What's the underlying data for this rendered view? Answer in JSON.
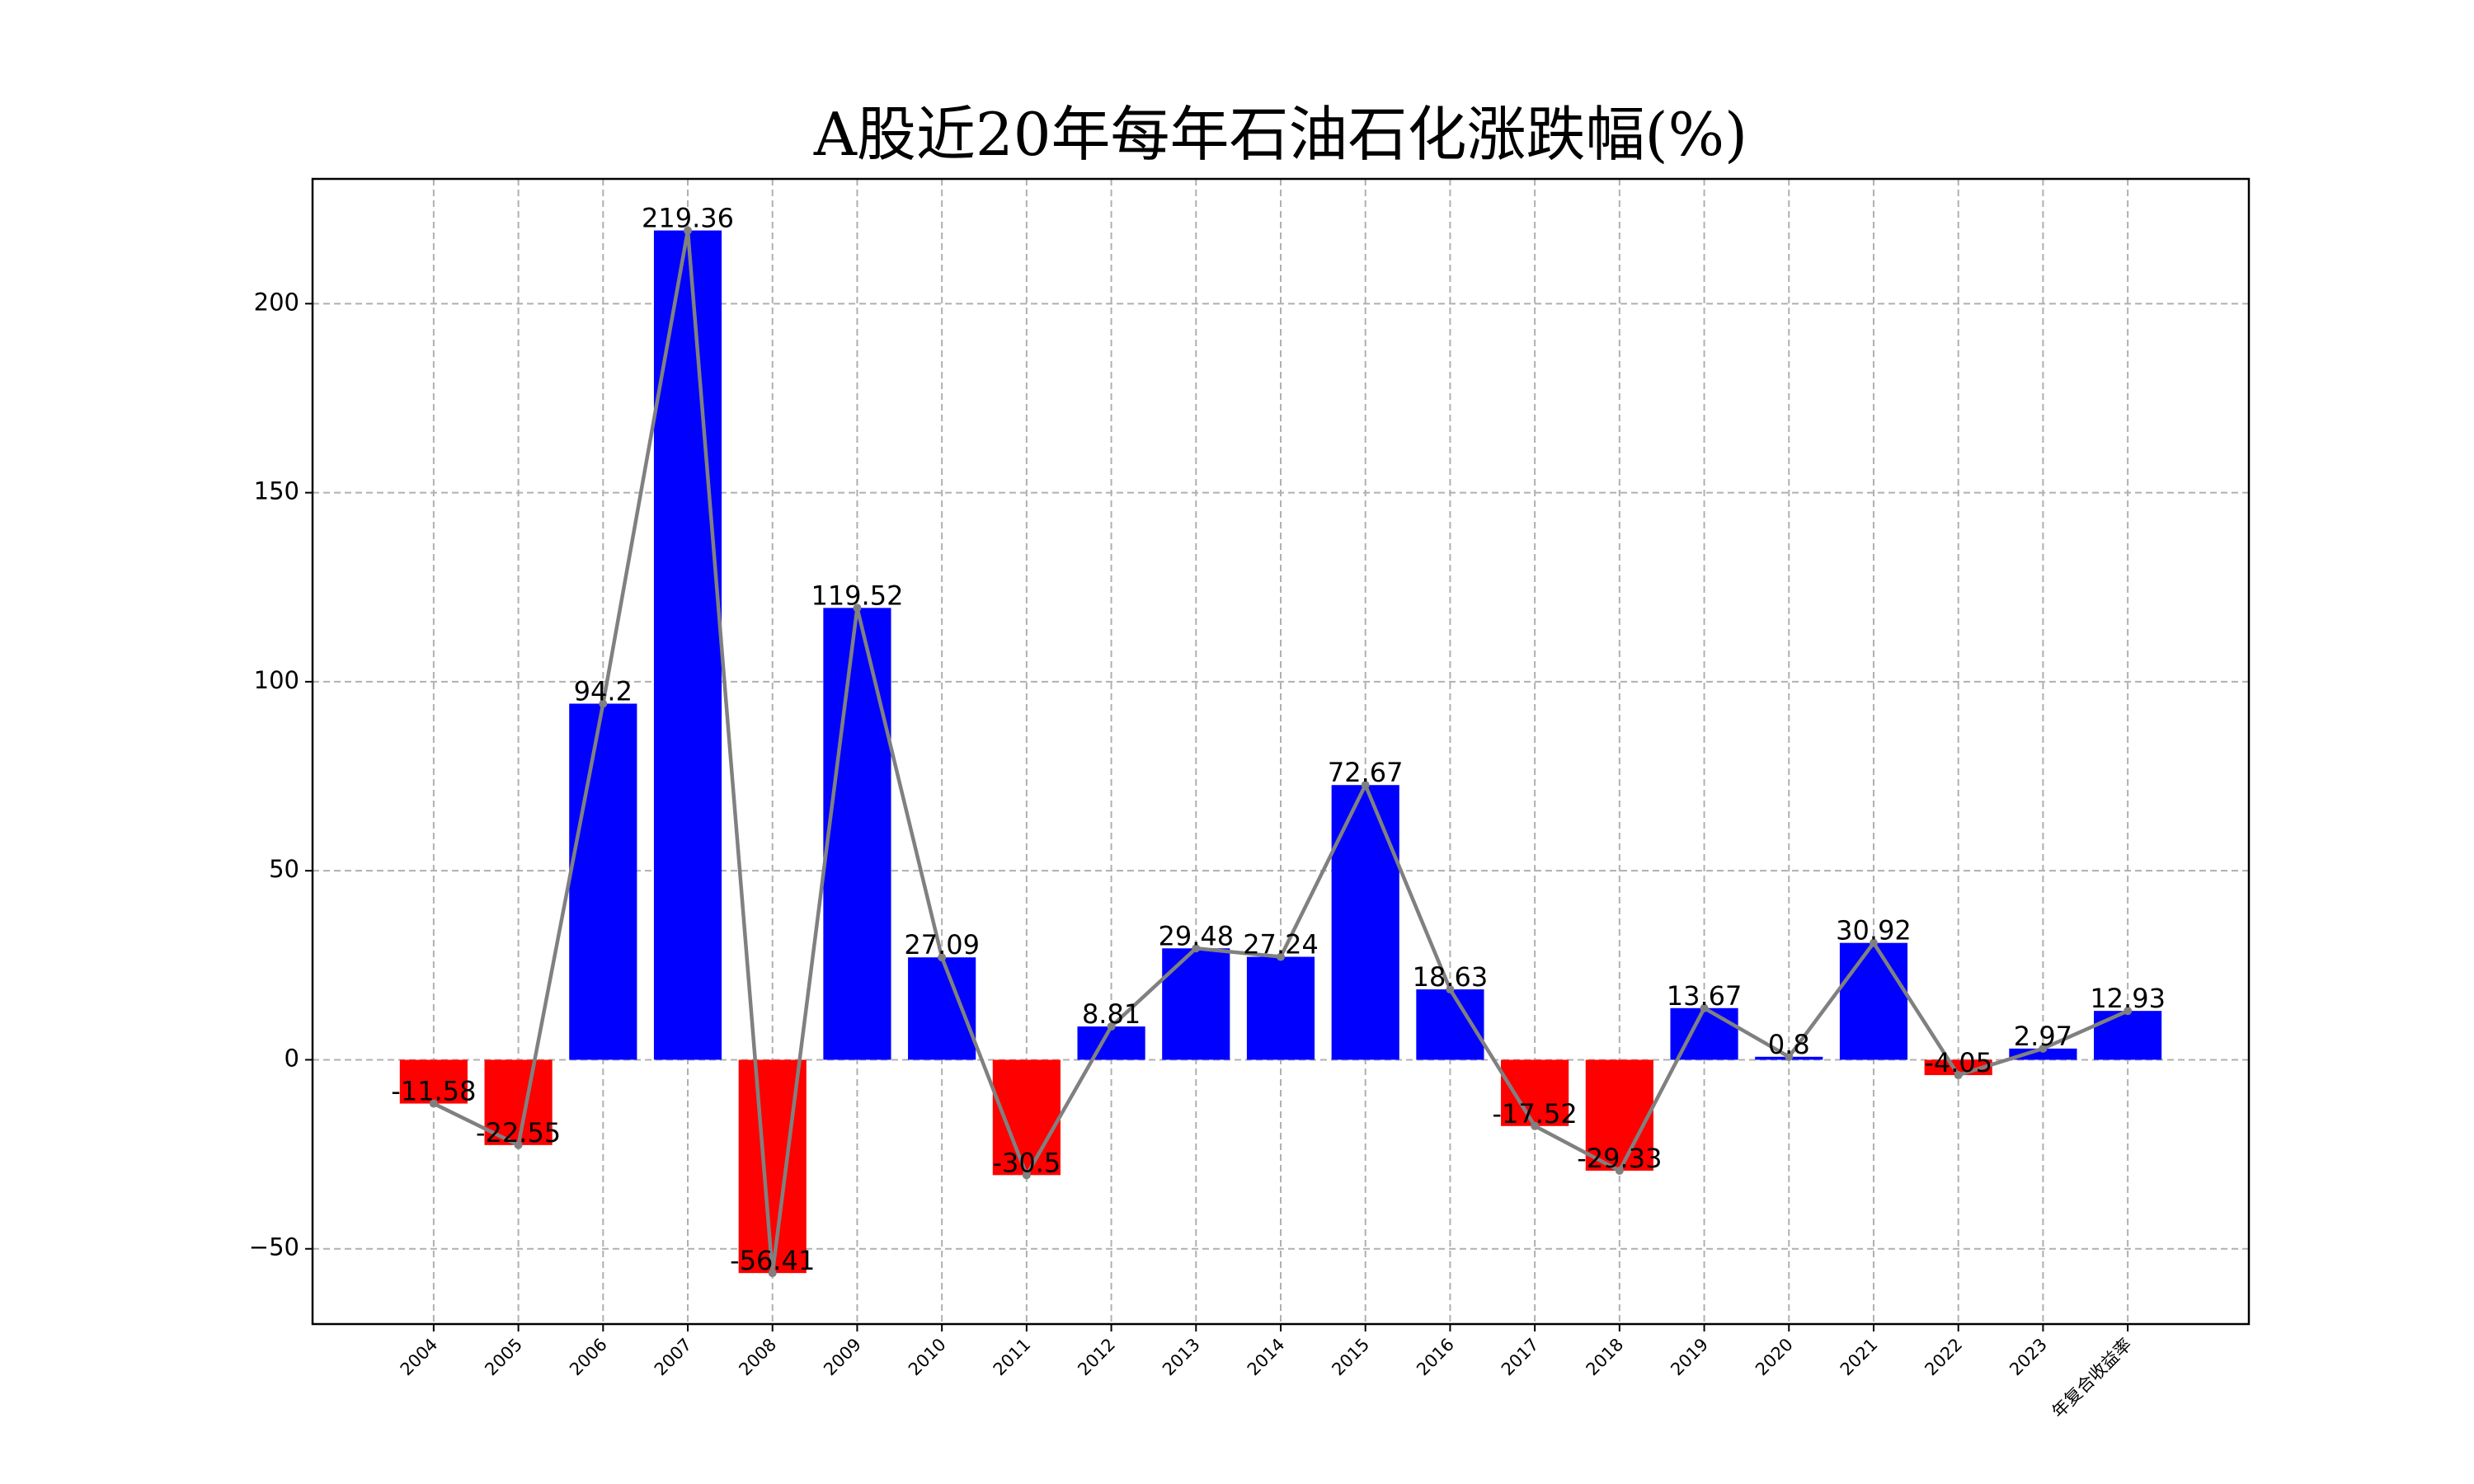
{
  "chart_data": {
    "type": "bar",
    "title": "A股近20年每年石油石化涨跌幅(%)",
    "categories": [
      "2004",
      "2005",
      "2006",
      "2007",
      "2008",
      "2009",
      "2010",
      "2011",
      "2012",
      "2013",
      "2014",
      "2015",
      "2016",
      "2017",
      "2018",
      "2019",
      "2020",
      "2021",
      "2022",
      "2023",
      "年复合收益率"
    ],
    "values": [
      -11.58,
      -22.55,
      94.2,
      219.36,
      -56.41,
      119.52,
      27.09,
      -30.5,
      8.81,
      29.48,
      27.24,
      72.67,
      18.63,
      -17.52,
      -29.33,
      13.67,
      0.8,
      30.92,
      -4.05,
      2.97,
      12.93
    ],
    "positive_color": "#0000ff",
    "negative_color": "#ff0000",
    "line_color": "#808080",
    "ylim": [
      -69.9,
      233.0
    ],
    "yticks": [
      {
        "value": -50,
        "label": "−50"
      },
      0,
      50,
      100,
      150,
      200
    ],
    "grid": true
  }
}
